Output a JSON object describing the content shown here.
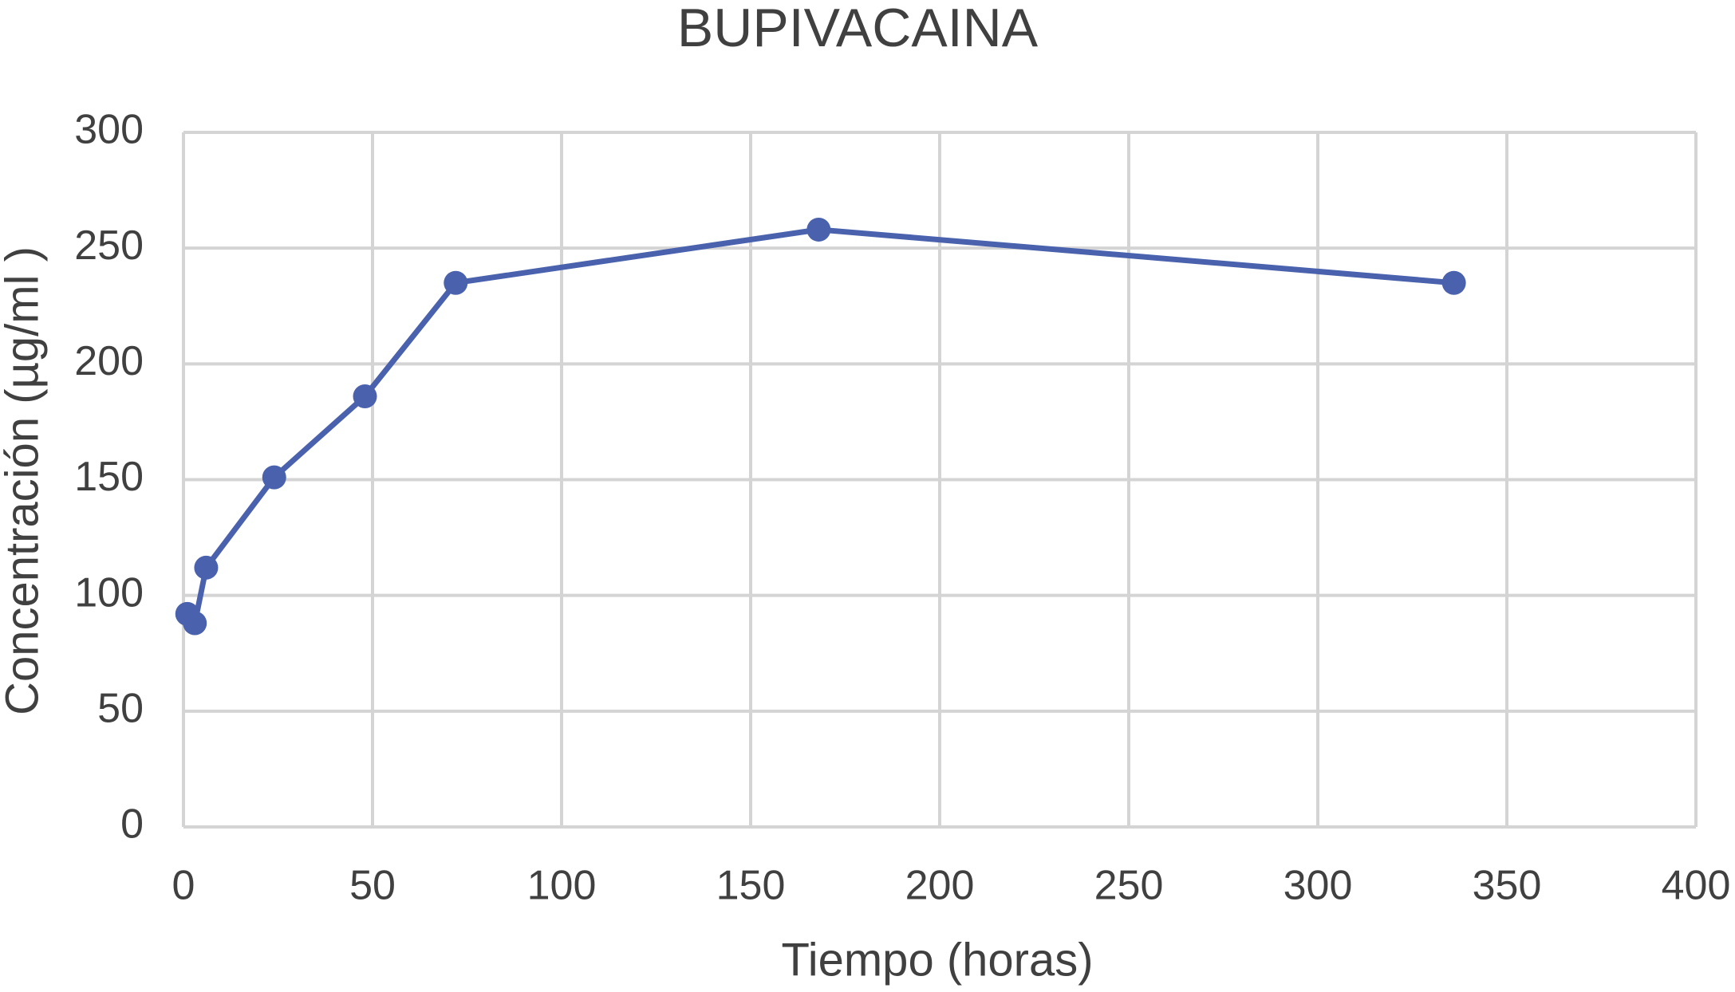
{
  "chart_data": {
    "type": "line",
    "title": "BUPIVACAINA",
    "x_label": "Tiempo (horas)",
    "y_label": "Concentración (µg/ml )",
    "x": [
      1,
      3,
      6,
      24,
      48,
      72,
      168,
      336
    ],
    "series": [
      {
        "name": "Bupivacaina",
        "color": "#4a62ad",
        "values": [
          92,
          88,
          112,
          151,
          186,
          235,
          258,
          235
        ]
      }
    ],
    "xlim": [
      0,
      400
    ],
    "xticks": [
      0,
      50,
      100,
      150,
      200,
      250,
      300,
      350,
      400
    ],
    "ylim": [
      0,
      300
    ],
    "yticks": [
      0,
      50,
      100,
      150,
      200,
      250,
      300
    ],
    "grid": true,
    "markers": true
  }
}
